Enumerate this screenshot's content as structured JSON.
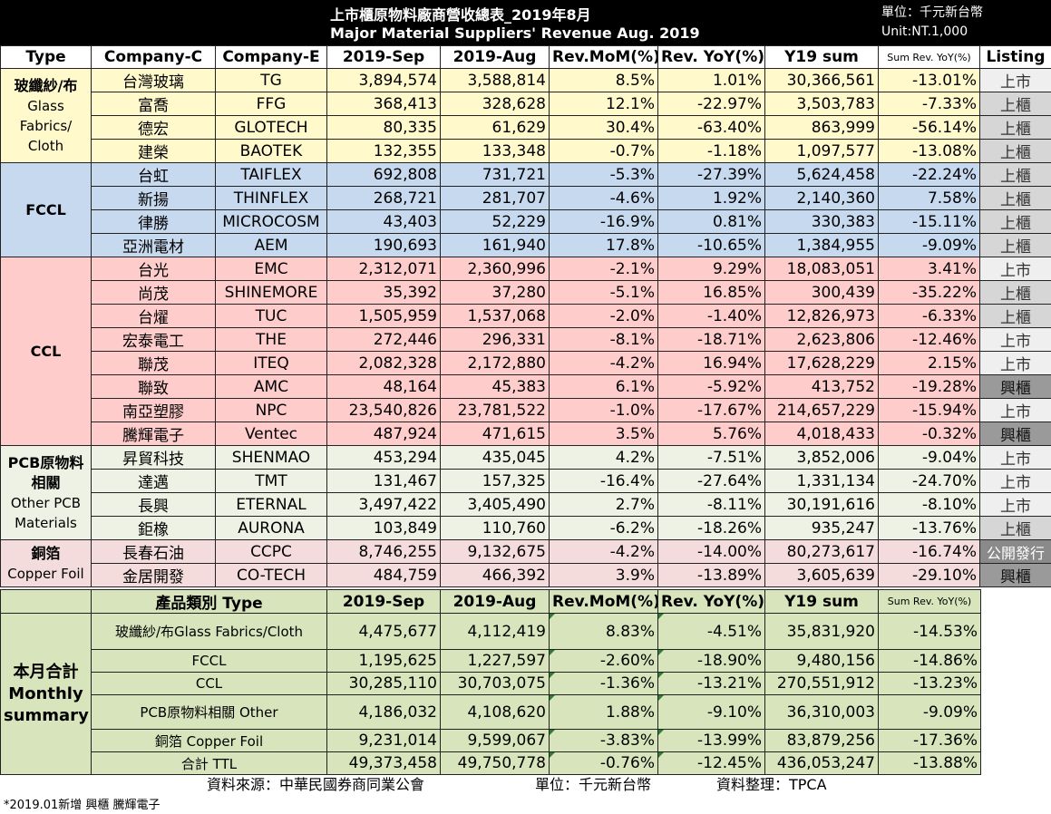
{
  "header": {
    "title_cn": "上市櫃原物料廠商營收總表_2019年8月",
    "title_en": "Major Material Suppliers' Revenue  Aug. 2019",
    "unit_cn": "單位：千元新台幣",
    "unit_en": "Unit:NT.1,000"
  },
  "columns": [
    "Type",
    "Company-C",
    "Company-E",
    "2019-Sep",
    "2019-Aug",
    "Rev.MoM(%)",
    "Rev. YoY(%)",
    "Y19 sum",
    "Sum Rev. YoY(%)",
    "Listing"
  ],
  "groups": [
    {
      "type_cn": "玻纖紗/布",
      "type_en": "Glass Fabrics/ Cloth",
      "color": "#fff9cc",
      "rows": [
        {
          "cn": "台灣玻璃",
          "en": "TG",
          "sep": "3,894,574",
          "aug": "3,588,814",
          "mom": "8.5%",
          "yoy": "1.01%",
          "sum": "30,366,561",
          "sumyoy": "-13.01%",
          "listing": "上市"
        },
        {
          "cn": "富喬",
          "en": "FFG",
          "sep": "368,413",
          "aug": "328,628",
          "mom": "12.1%",
          "yoy": "-22.97%",
          "sum": "3,503,783",
          "sumyoy": "-7.33%",
          "listing": "上櫃"
        },
        {
          "cn": "德宏",
          "en": "GLOTECH",
          "sep": "80,335",
          "aug": "61,629",
          "mom": "30.4%",
          "yoy": "-63.40%",
          "sum": "863,999",
          "sumyoy": "-56.14%",
          "listing": "上櫃"
        },
        {
          "cn": "建榮",
          "en": "BAOTEK",
          "sep": "132,355",
          "aug": "133,348",
          "mom": "-0.7%",
          "yoy": "-1.18%",
          "sum": "1,097,577",
          "sumyoy": "-13.08%",
          "listing": "上櫃"
        }
      ]
    },
    {
      "type_cn": "FCCL",
      "type_en": "",
      "color": "#c6d9ef",
      "rows": [
        {
          "cn": "台虹",
          "en": "TAIFLEX",
          "sep": "692,808",
          "aug": "731,721",
          "mom": "-5.3%",
          "yoy": "-27.39%",
          "sum": "5,624,458",
          "sumyoy": "-22.24%",
          "listing": "上櫃"
        },
        {
          "cn": "新揚",
          "en": "THINFLEX",
          "sep": "268,721",
          "aug": "281,707",
          "mom": "-4.6%",
          "yoy": "1.92%",
          "sum": "2,140,360",
          "sumyoy": "7.58%",
          "listing": "上櫃"
        },
        {
          "cn": "律勝",
          "en": "MICROCOSM",
          "sep": "43,403",
          "aug": "52,229",
          "mom": "-16.9%",
          "yoy": "0.81%",
          "sum": "330,383",
          "sumyoy": "-15.11%",
          "listing": "上櫃"
        },
        {
          "cn": "亞洲電材",
          "en": "AEM",
          "sep": "190,693",
          "aug": "161,940",
          "mom": "17.8%",
          "yoy": "-10.65%",
          "sum": "1,384,955",
          "sumyoy": "-9.09%",
          "listing": "上櫃"
        }
      ]
    },
    {
      "type_cn": "CCL",
      "type_en": "",
      "color": "#ffcccc",
      "rows": [
        {
          "cn": "台光",
          "en": "EMC",
          "sep": "2,312,071",
          "aug": "2,360,996",
          "mom": "-2.1%",
          "yoy": "9.29%",
          "sum": "18,083,051",
          "sumyoy": "3.41%",
          "listing": "上市"
        },
        {
          "cn": "尚茂",
          "en": "SHINEMORE",
          "sep": "35,392",
          "aug": "37,280",
          "mom": "-5.1%",
          "yoy": "16.85%",
          "sum": "300,439",
          "sumyoy": "-35.22%",
          "listing": "上櫃"
        },
        {
          "cn": "台燿",
          "en": "TUC",
          "sep": "1,505,959",
          "aug": "1,537,068",
          "mom": "-2.0%",
          "yoy": "-1.40%",
          "sum": "12,826,973",
          "sumyoy": "-6.33%",
          "listing": "上櫃"
        },
        {
          "cn": "宏泰電工",
          "en": "THE",
          "sep": "272,446",
          "aug": "296,331",
          "mom": "-8.1%",
          "yoy": "-18.71%",
          "sum": "2,623,806",
          "sumyoy": "-12.46%",
          "listing": "上市"
        },
        {
          "cn": "聯茂",
          "en": "ITEQ",
          "sep": "2,082,328",
          "aug": "2,172,880",
          "mom": "-4.2%",
          "yoy": "16.94%",
          "sum": "17,628,229",
          "sumyoy": "2.15%",
          "listing": "上市"
        },
        {
          "cn": "聯致",
          "en": "AMC",
          "sep": "48,164",
          "aug": "45,383",
          "mom": "6.1%",
          "yoy": "-5.92%",
          "sum": "413,752",
          "sumyoy": "-19.28%",
          "listing": "興櫃"
        },
        {
          "cn": "南亞塑膠",
          "en": "NPC",
          "sep": "23,540,826",
          "aug": "23,781,522",
          "mom": "-1.0%",
          "yoy": "-17.67%",
          "sum": "214,657,229",
          "sumyoy": "-15.94%",
          "listing": "上市"
        },
        {
          "cn": "騰輝電子",
          "en": "Ventec",
          "sep": "487,924",
          "aug": "471,615",
          "mom": "3.5%",
          "yoy": "5.76%",
          "sum": "4,018,433",
          "sumyoy": "-0.32%",
          "listing": "興櫃"
        }
      ]
    },
    {
      "type_cn": "PCB原物料相關",
      "type_en": "Other PCB Materials",
      "color": "#eef2e4",
      "rows": [
        {
          "cn": "昇貿科技",
          "en": "SHENMAO",
          "sep": "453,294",
          "aug": "435,045",
          "mom": "4.2%",
          "yoy": "-7.51%",
          "sum": "3,852,006",
          "sumyoy": "-9.04%",
          "listing": "上市"
        },
        {
          "cn": "達邁",
          "en": "TMT",
          "sep": "131,467",
          "aug": "157,325",
          "mom": "-16.4%",
          "yoy": "-27.64%",
          "sum": "1,331,134",
          "sumyoy": "-24.70%",
          "listing": "上市"
        },
        {
          "cn": "長興",
          "en": "ETERNAL",
          "sep": "3,497,422",
          "aug": "3,405,490",
          "mom": "2.7%",
          "yoy": "-8.11%",
          "sum": "30,191,616",
          "sumyoy": "-8.10%",
          "listing": "上市"
        },
        {
          "cn": "鉅橡",
          "en": "AURONA",
          "sep": "103,849",
          "aug": "110,760",
          "mom": "-6.2%",
          "yoy": "-18.26%",
          "sum": "935,247",
          "sumyoy": "-13.76%",
          "listing": "上櫃"
        }
      ]
    },
    {
      "type_cn": "銅箔",
      "type_en": "Copper Foil",
      "color": "#f4dcdc",
      "rows": [
        {
          "cn": "長春石油",
          "en": "CCPC",
          "sep": "8,746,255",
          "aug": "9,132,675",
          "mom": "-4.2%",
          "yoy": "-14.00%",
          "sum": "80,273,617",
          "sumyoy": "-16.74%",
          "listing": "公開發行"
        },
        {
          "cn": "金居開發",
          "en": "CO-TECH",
          "sep": "484,759",
          "aug": "466,392",
          "mom": "3.9%",
          "yoy": "-13.89%",
          "sum": "3,605,639",
          "sumyoy": "-29.10%",
          "listing": "興櫃"
        }
      ]
    }
  ],
  "listing_colors": {
    "上市": "#efefef",
    "上櫃": "#d6d6d6",
    "興櫃": "#9a9a9a",
    "公開發行": "#8a8a8a"
  },
  "summary": {
    "side_label_cn": "本月合計",
    "side_label_en": "Monthly summary",
    "columns": [
      "產品類別 Type",
      "2019-Sep",
      "2019-Aug",
      "Rev.MoM(%)",
      "Rev. YoY(%)",
      "Y19 sum",
      "Sum Rev. YoY(%)"
    ],
    "rows": [
      {
        "cat": "玻纖紗/布Glass Fabrics/Cloth",
        "sep": "4,475,677",
        "aug": "4,112,419",
        "mom": "8.83%",
        "yoy": "-4.51%",
        "sum": "35,831,920",
        "sumyoy": "-14.53%"
      },
      {
        "cat": "FCCL",
        "sep": "1,195,625",
        "aug": "1,227,597",
        "mom": "-2.60%",
        "yoy": "-18.90%",
        "sum": "9,480,156",
        "sumyoy": "-14.86%"
      },
      {
        "cat": "CCL",
        "sep": "30,285,110",
        "aug": "30,703,075",
        "mom": "-1.36%",
        "yoy": "-13.21%",
        "sum": "270,551,912",
        "sumyoy": "-13.23%"
      },
      {
        "cat": "PCB原物料相關 Other",
        "sep": "4,186,032",
        "aug": "4,108,620",
        "mom": "1.88%",
        "yoy": "-9.10%",
        "sum": "36,310,003",
        "sumyoy": "-9.09%"
      },
      {
        "cat": "銅箔 Copper Foil",
        "sep": "9,231,014",
        "aug": "9,599,067",
        "mom": "-3.83%",
        "yoy": "-13.99%",
        "sum": "83,879,256",
        "sumyoy": "-17.36%"
      },
      {
        "cat": "合計 TTL",
        "sep": "49,373,458",
        "aug": "49,750,778",
        "mom": "-0.76%",
        "yoy": "-12.45%",
        "sum": "436,053,247",
        "sumyoy": "-13.88%"
      }
    ],
    "color": "#d8e4bc"
  },
  "footer": {
    "source": "資料來源：中華民國券商同業公會",
    "unit": "單位：千元新台幣",
    "compiled": "資料整理：TPCA",
    "note": "*2019.01新增 興櫃 騰輝電子"
  }
}
